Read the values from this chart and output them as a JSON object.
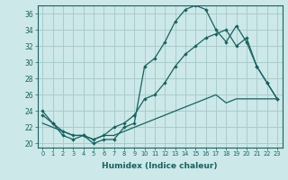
{
  "xlabel": "Humidex (Indice chaleur)",
  "background_color": "#cce8e8",
  "grid_color": "#aacccc",
  "line_color": "#1a6060",
  "xlim": [
    -0.5,
    23.5
  ],
  "ylim": [
    19.5,
    37.0
  ],
  "yticks": [
    20,
    22,
    24,
    26,
    28,
    30,
    32,
    34,
    36
  ],
  "xticks": [
    0,
    1,
    2,
    3,
    4,
    5,
    6,
    7,
    8,
    9,
    10,
    11,
    12,
    13,
    14,
    15,
    16,
    17,
    18,
    19,
    20,
    21,
    22,
    23
  ],
  "series1_x": [
    0,
    1,
    2,
    3,
    4,
    5,
    6,
    7,
    8,
    9,
    10,
    11,
    12,
    13,
    14,
    15,
    16,
    17,
    18,
    19,
    20,
    21,
    22,
    23
  ],
  "series1_y": [
    24.0,
    22.5,
    21.0,
    20.5,
    21.0,
    20.0,
    20.5,
    20.5,
    22.0,
    22.5,
    29.5,
    30.5,
    32.5,
    35.0,
    36.5,
    37.0,
    36.5,
    34.0,
    32.5,
    34.5,
    32.5,
    29.5,
    27.5,
    25.5
  ],
  "series2_x": [
    0,
    1,
    2,
    3,
    4,
    5,
    6,
    7,
    8,
    9,
    10,
    11,
    12,
    13,
    14,
    15,
    16,
    17,
    18,
    19,
    20,
    21,
    22,
    23
  ],
  "series2_y": [
    23.5,
    22.5,
    21.5,
    21.0,
    21.0,
    20.5,
    21.0,
    22.0,
    22.5,
    23.5,
    25.5,
    26.0,
    27.5,
    29.5,
    31.0,
    32.0,
    33.0,
    33.5,
    34.0,
    32.0,
    33.0,
    29.5,
    27.5,
    25.5
  ],
  "series3_x": [
    0,
    1,
    2,
    3,
    4,
    5,
    6,
    7,
    8,
    9,
    10,
    11,
    12,
    13,
    14,
    15,
    16,
    17,
    18,
    19,
    20,
    21,
    22,
    23
  ],
  "series3_y": [
    22.5,
    22.0,
    21.5,
    21.0,
    21.0,
    20.5,
    21.0,
    21.0,
    21.5,
    22.0,
    22.5,
    23.0,
    23.5,
    24.0,
    24.5,
    25.0,
    25.5,
    26.0,
    25.0,
    25.5,
    25.5,
    25.5,
    25.5,
    25.5
  ]
}
